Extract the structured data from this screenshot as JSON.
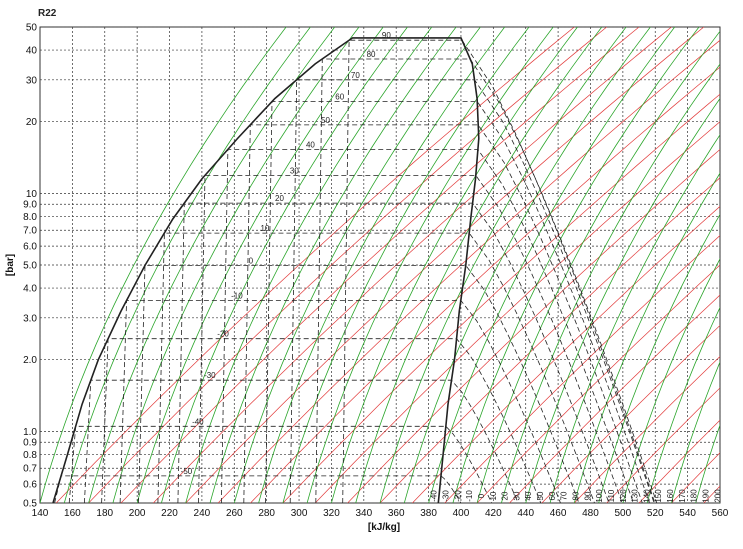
{
  "chart_data": {
    "type": "line",
    "title": "R22",
    "xlabel": "[kJ/kg]",
    "ylabel": "[bar]",
    "xlim": [
      140,
      560
    ],
    "ylim": [
      0.5,
      50
    ],
    "y_scale": "log",
    "grid": true,
    "x_ticks": [
      140,
      160,
      180,
      200,
      220,
      240,
      260,
      280,
      300,
      320,
      340,
      360,
      380,
      400,
      420,
      440,
      460,
      480,
      500,
      520,
      540,
      560
    ],
    "y_ticks": [
      0.5,
      0.6,
      0.7,
      0.8,
      0.9,
      1.0,
      2.0,
      3.0,
      4.0,
      5.0,
      6.0,
      7.0,
      8.0,
      9.0,
      10,
      20,
      30,
      40,
      50
    ],
    "y_tick_labels": [
      "0.5",
      "0.6",
      "0.7",
      "0.8",
      "0.9",
      "1.0",
      "2.0",
      "3.0",
      "4.0",
      "5.0",
      "6.0",
      "7.0",
      "8.0",
      "9.0",
      "10",
      "20",
      "30",
      "40",
      "50"
    ],
    "saturated_liquid": [
      [
        148,
        0.5
      ],
      [
        157,
        0.8
      ],
      [
        166,
        1.3
      ],
      [
        176,
        2.0
      ],
      [
        190,
        3.2
      ],
      [
        205,
        5.0
      ],
      [
        222,
        7.8
      ],
      [
        240,
        11.5
      ],
      [
        262,
        17
      ],
      [
        285,
        25
      ],
      [
        310,
        35
      ],
      [
        333,
        45
      ]
    ],
    "saturated_vapor": [
      [
        386,
        0.5
      ],
      [
        389,
        0.8
      ],
      [
        392,
        1.3
      ],
      [
        396,
        2.0
      ],
      [
        399,
        3.2
      ],
      [
        403,
        5.0
      ],
      [
        406,
        7.8
      ],
      [
        409,
        11.5
      ],
      [
        411,
        17
      ],
      [
        410,
        25
      ],
      [
        407,
        35
      ],
      [
        400,
        45
      ]
    ],
    "isotherms": [
      {
        "t": -50,
        "p_sat": 0.65
      },
      {
        "t": -40,
        "p_sat": 1.05
      },
      {
        "t": -30,
        "p_sat": 1.64
      },
      {
        "t": -20,
        "p_sat": 2.45
      },
      {
        "t": -10,
        "p_sat": 3.55
      },
      {
        "t": 0,
        "p_sat": 4.98
      },
      {
        "t": 10,
        "p_sat": 6.81
      },
      {
        "t": 20,
        "p_sat": 9.1
      },
      {
        "t": 30,
        "p_sat": 11.9
      },
      {
        "t": 40,
        "p_sat": 15.3
      },
      {
        "t": 50,
        "p_sat": 19.4
      },
      {
        "t": 60,
        "p_sat": 24.3
      },
      {
        "t": 70,
        "p_sat": 30.0
      },
      {
        "t": 80,
        "p_sat": 36.7
      },
      {
        "t": 90,
        "p_sat": 44.0
      }
    ],
    "isotherm_labels": [
      "-50",
      "-40",
      "-30",
      "-20",
      "-10",
      "0",
      "10",
      "20",
      "30",
      "40",
      "50",
      "60",
      "70",
      "80",
      "90"
    ],
    "vapor_region_temp_labels": [
      "-40",
      "-30",
      "-20",
      "-10",
      "0",
      "10",
      "20",
      "30",
      "40",
      "50",
      "60",
      "70",
      "80",
      "90",
      "100",
      "110",
      "120",
      "130",
      "140",
      "150",
      "160",
      "170",
      "180",
      "190",
      "200"
    ],
    "colors": {
      "saturation_line": "#222222",
      "isotherm": "#222222",
      "enthalpy_grid": "#333333",
      "entropy_lines": "#2aa52a",
      "volume_lines": "#e23b3b",
      "background": "#ffffff"
    }
  }
}
